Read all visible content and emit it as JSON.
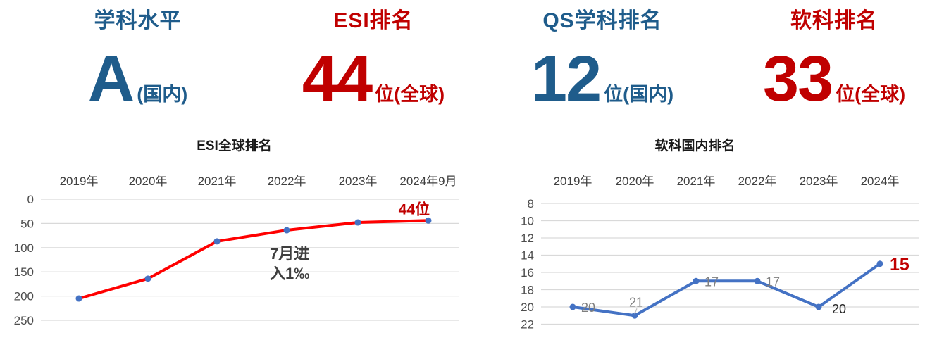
{
  "stats": [
    {
      "label": "学科水平",
      "value": "A",
      "suffix": "(国内)",
      "color": "#1F5C8B"
    },
    {
      "label": "ESI排名",
      "value": "44",
      "suffix": "位(全球)",
      "color": "#C00000"
    },
    {
      "label": "QS学科排名",
      "value": "12",
      "suffix": "位(国内)",
      "color": "#1F5C8B"
    },
    {
      "label": "软科排名",
      "value": "33",
      "suffix": "位(全球)",
      "color": "#C00000"
    }
  ],
  "chart_data": [
    {
      "type": "line",
      "title": "ESI全球排名",
      "categories": [
        "2019年",
        "2020年",
        "2021年",
        "2022年",
        "2023年",
        "2024年9月"
      ],
      "series": [
        {
          "name": "ESI全球排名",
          "values": [
            205,
            164,
            87,
            64,
            48,
            44
          ]
        }
      ],
      "y_ticks": [
        0,
        50,
        100,
        150,
        200,
        250
      ],
      "ylim": [
        0,
        250
      ],
      "y_axis_reversed": true,
      "x_axis_position": "top",
      "grid": true,
      "line_color": "#FF0000",
      "marker_color": "#4472C4",
      "grid_color": "#D9D9D9",
      "tick_color": "#4d4d4d",
      "x_label_color": "#404040",
      "end_label": {
        "text": "44位",
        "color": "#C00000"
      },
      "annotation": {
        "lines": [
          "7月进",
          "入1‰"
        ],
        "color": "#3F3F3F"
      }
    },
    {
      "type": "line",
      "title": "软科国内排名",
      "categories": [
        "2019年",
        "2020年",
        "2021年",
        "2022年",
        "2023年",
        "2024年"
      ],
      "series": [
        {
          "name": "软科国内排名",
          "values": [
            20,
            21,
            17,
            17,
            20,
            15
          ]
        }
      ],
      "y_ticks": [
        8,
        10,
        12,
        14,
        16,
        18,
        20,
        22
      ],
      "ylim": [
        8,
        22
      ],
      "y_axis_reversed": true,
      "x_axis_position": "top",
      "grid": true,
      "line_color": "#4472C4",
      "marker_color": "#4472C4",
      "grid_color": "#D9D9D9",
      "tick_color": "#4d4d4d",
      "x_label_color": "#404040",
      "data_labels": [
        {
          "text": "20",
          "color": "#7F7F7F",
          "placement": "right"
        },
        {
          "text": "21",
          "color": "#7F7F7F",
          "placement": "above",
          "leader": true
        },
        {
          "text": "17",
          "color": "#7F7F7F",
          "placement": "right"
        },
        {
          "text": "17",
          "color": "#7F7F7F",
          "placement": "right"
        },
        {
          "text": "20",
          "color": "#262626",
          "placement": "right-low"
        },
        {
          "text": "15",
          "color": "#C00000",
          "placement": "right-big",
          "bold": true
        }
      ]
    }
  ]
}
